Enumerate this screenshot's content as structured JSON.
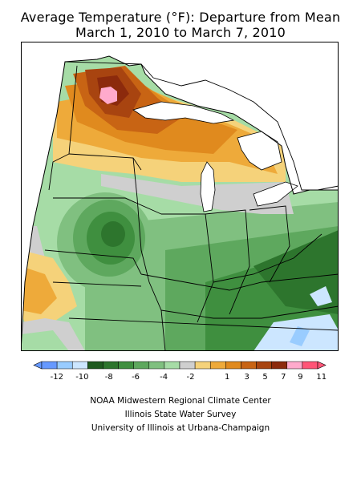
{
  "title": {
    "line1": "Average Temperature (°F): Departure from Mean",
    "line2": "March 1, 2010 to March 7, 2010"
  },
  "legend": {
    "bins": [
      {
        "color": "#6699ff"
      },
      {
        "color": "#99ccff"
      },
      {
        "color": "#cce6ff"
      },
      {
        "color": "#1f5a1f"
      },
      {
        "color": "#2d752d"
      },
      {
        "color": "#3f8f3f"
      },
      {
        "color": "#5ea85e"
      },
      {
        "color": "#80c080"
      },
      {
        "color": "#a6dca6"
      },
      {
        "color": "#cfcfcf"
      },
      {
        "color": "#f5d27a"
      },
      {
        "color": "#eeaa3a"
      },
      {
        "color": "#e08a1e"
      },
      {
        "color": "#c86414"
      },
      {
        "color": "#a84410"
      },
      {
        "color": "#8c2a0c"
      },
      {
        "color": "#ffaacc"
      },
      {
        "color": "#ff5577"
      }
    ],
    "tick_labels": [
      "-12",
      "-10",
      "-8",
      "-6",
      "-4",
      "-2",
      "1",
      "3",
      "5",
      "7",
      "9",
      "11"
    ]
  },
  "credits": {
    "line1": "NOAA Midwestern Regional Climate Center",
    "line2": "Illinois State Water Survey",
    "line3": "University of Illinois at Urbana-Champaign"
  },
  "map_colors": {
    "background": "#ffffff",
    "border": "#000000",
    "lake": "#ffffff"
  }
}
